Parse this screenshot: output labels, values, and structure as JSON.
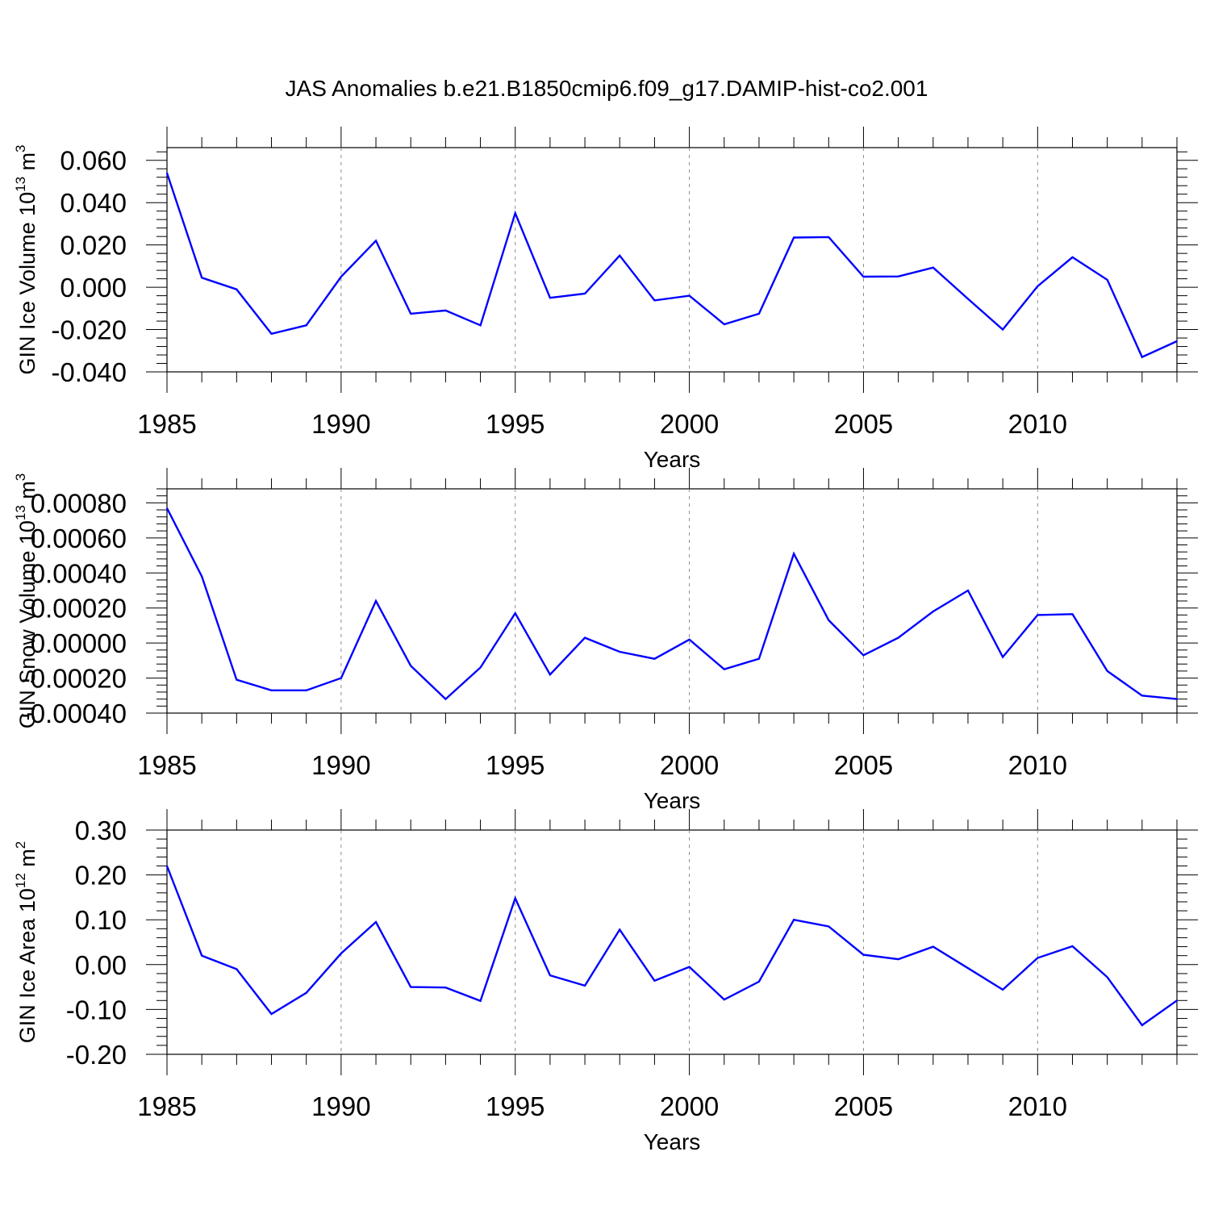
{
  "figure_title": "JAS Anomalies b.e21.B1850cmip6.f09_g17.DAMIP-hist-co2.001",
  "line_color": "#0000ff",
  "chart_data": [
    {
      "type": "line",
      "name": "ice-volume",
      "title": "",
      "ylabel": "GIN Ice Volume 10",
      "ylabel_exp": "13",
      "ylabel_unit": " m",
      "ylabel_unit_exp": "3",
      "xlabel": "Years",
      "xlim": [
        1985,
        2014
      ],
      "ylim": [
        -0.04,
        0.066
      ],
      "yticks": [
        -0.04,
        -0.02,
        0.0,
        0.02,
        0.04,
        0.06
      ],
      "ytick_labels": [
        "-0.040",
        "-0.020",
        "0.000",
        "0.020",
        "0.040",
        "0.060"
      ],
      "yminor_step": 0.004,
      "xticks": [
        1985,
        1990,
        1995,
        2000,
        2005,
        2010
      ],
      "xtick_labels": [
        "1985",
        "1990",
        "1995",
        "2000",
        "2005",
        "2010"
      ],
      "gridlines_x": [
        1990,
        1995,
        2000,
        2005,
        2010
      ],
      "x": [
        1985,
        1986,
        1987,
        1988,
        1989,
        1990,
        1991,
        1992,
        1993,
        1994,
        1995,
        1996,
        1997,
        1998,
        1999,
        2000,
        2001,
        2002,
        2003,
        2004,
        2005,
        2006,
        2007,
        2008,
        2009,
        2010,
        2011,
        2012,
        2013,
        2014
      ],
      "series": [
        {
          "name": "GIN Ice Volume",
          "values": [
            0.054,
            0.0045,
            -0.001,
            -0.022,
            -0.018,
            0.005,
            0.022,
            -0.0125,
            -0.011,
            -0.018,
            0.035,
            -0.005,
            -0.003,
            0.015,
            -0.0062,
            -0.004,
            -0.0175,
            -0.0125,
            0.0235,
            0.0237,
            0.005,
            0.0051,
            0.0093,
            -0.0055,
            -0.02,
            0.0005,
            0.0142,
            0.0035,
            -0.033,
            -0.0255
          ]
        }
      ]
    },
    {
      "type": "line",
      "name": "snow-volume",
      "title": "",
      "ylabel": "GIN Snow Volume 10",
      "ylabel_exp": "13",
      "ylabel_unit": " m",
      "ylabel_unit_exp": "3",
      "xlabel": "Years",
      "xlim": [
        1985,
        2014
      ],
      "ylim": [
        -0.0004,
        0.00088
      ],
      "yticks": [
        -0.0004,
        -0.0002,
        0.0,
        0.0002,
        0.0004,
        0.0006,
        0.0008
      ],
      "ytick_labels": [
        "-0.00040",
        "-0.00020",
        "0.00000",
        "0.00020",
        "0.00040",
        "0.00060",
        "0.00080"
      ],
      "yminor_step": 4e-05,
      "xticks": [
        1985,
        1990,
        1995,
        2000,
        2005,
        2010
      ],
      "xtick_labels": [
        "1985",
        "1990",
        "1995",
        "2000",
        "2005",
        "2010"
      ],
      "gridlines_x": [
        1990,
        1995,
        2000,
        2005,
        2010
      ],
      "x": [
        1985,
        1986,
        1987,
        1988,
        1989,
        1990,
        1991,
        1992,
        1993,
        1994,
        1995,
        1996,
        1997,
        1998,
        1999,
        2000,
        2001,
        2002,
        2003,
        2004,
        2005,
        2006,
        2007,
        2008,
        2009,
        2010,
        2011,
        2012,
        2013,
        2014
      ],
      "series": [
        {
          "name": "GIN Snow Volume",
          "values": [
            0.00077,
            0.00038,
            -0.00021,
            -0.00027,
            -0.00027,
            -0.0002,
            0.00024,
            -0.00013,
            -0.00032,
            -0.00014,
            0.00017,
            -0.00018,
            3e-05,
            -5e-05,
            -9e-05,
            2e-05,
            -0.00015,
            -9e-05,
            0.00051,
            0.00013,
            -7e-05,
            3e-05,
            0.00018,
            0.0003,
            -8e-05,
            0.00016,
            0.000165,
            -0.00016,
            -0.0003,
            -0.00032
          ]
        }
      ]
    },
    {
      "type": "line",
      "name": "ice-area",
      "title": "",
      "ylabel": "GIN Ice Area 10",
      "ylabel_exp": "12",
      "ylabel_unit": " m",
      "ylabel_unit_exp": "2",
      "xlabel": "Years",
      "xlim": [
        1985,
        2014
      ],
      "ylim": [
        -0.2,
        0.3
      ],
      "yticks": [
        -0.2,
        -0.1,
        0.0,
        0.1,
        0.2,
        0.3
      ],
      "ytick_labels": [
        "-0.20",
        "-0.10",
        "0.00",
        "0.10",
        "0.20",
        "0.30"
      ],
      "yminor_step": 0.02,
      "xticks": [
        1985,
        1990,
        1995,
        2000,
        2005,
        2010
      ],
      "xtick_labels": [
        "1985",
        "1990",
        "1995",
        "2000",
        "2005",
        "2010"
      ],
      "gridlines_x": [
        1990,
        1995,
        2000,
        2005,
        2010
      ],
      "x": [
        1985,
        1986,
        1987,
        1988,
        1989,
        1990,
        1991,
        1992,
        1993,
        1994,
        1995,
        1996,
        1997,
        1998,
        1999,
        2000,
        2001,
        2002,
        2003,
        2004,
        2005,
        2006,
        2007,
        2008,
        2009,
        2010,
        2011,
        2012,
        2013,
        2014
      ],
      "series": [
        {
          "name": "GIN Ice Area",
          "values": [
            0.22,
            0.02,
            -0.01,
            -0.11,
            -0.063,
            0.025,
            0.095,
            -0.05,
            -0.051,
            -0.081,
            0.148,
            -0.024,
            -0.047,
            0.078,
            -0.036,
            -0.005,
            -0.078,
            -0.038,
            0.1,
            0.085,
            0.022,
            0.012,
            0.04,
            -0.008,
            -0.056,
            0.015,
            0.041,
            -0.028,
            -0.135,
            -0.08
          ]
        }
      ]
    }
  ]
}
